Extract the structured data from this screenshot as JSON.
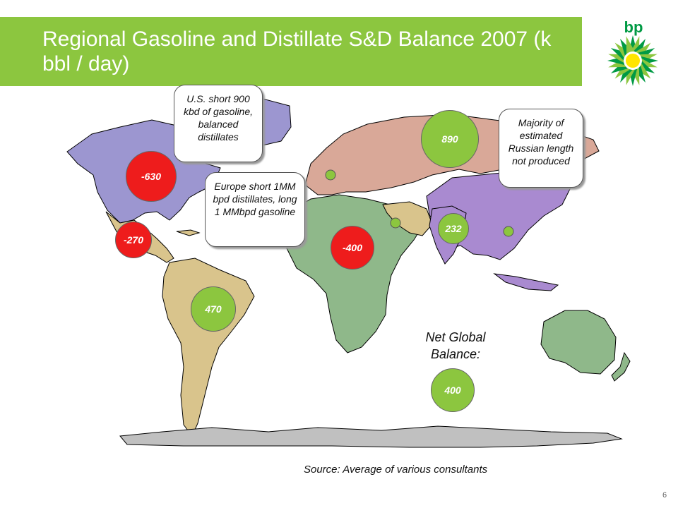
{
  "title": "Regional Gasoline and Distillate S&D Balance 2007 (k bbl / day)",
  "logo": {
    "text": "bp",
    "icon": "bp-helios-logo-icon",
    "colors": [
      "#009a44",
      "#8cc63f",
      "#ffe500"
    ]
  },
  "regions": [
    {
      "name": "North America",
      "balance": "-630",
      "status": "short"
    },
    {
      "name": "Central America",
      "balance": "-270",
      "status": "short"
    },
    {
      "name": "South America",
      "balance": "470",
      "status": "long"
    },
    {
      "name": "Europe/Africa",
      "balance": "-400",
      "status": "short"
    },
    {
      "name": "FSU",
      "balance": "890",
      "status": "long"
    },
    {
      "name": "Asia",
      "balance": "232",
      "status": "long"
    }
  ],
  "callouts": {
    "us": "U.S. short 900 kbd of gasoline, balanced distillates",
    "europe": "Europe short 1MM bpd distillates, long 1 MMbpd gasoline",
    "russia": "Majority of estimated Russian length not produced"
  },
  "net_global": {
    "label": "Net Global Balance:",
    "value": "400"
  },
  "source": "Source: Average of various consultants",
  "page_number": "6",
  "colors": {
    "short": "#ee1c1c",
    "long": "#8cc63f",
    "north_america": "#9c96d0",
    "latin_america": "#d9c48c",
    "europe_russia": "#d9a898",
    "africa_mideast": "#8fb88a",
    "asia": "#a98ad0",
    "oceania": "#8fb88a",
    "antarctica": "#c0c0c0"
  }
}
